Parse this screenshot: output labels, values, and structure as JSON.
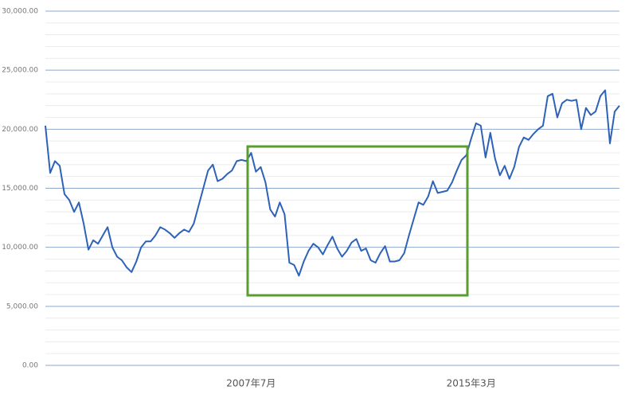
{
  "chart_data": {
    "type": "line",
    "categories": [
      null,
      null,
      null,
      null,
      null,
      null,
      null,
      null,
      null,
      null,
      null,
      null,
      null,
      null,
      null,
      null,
      null,
      null,
      null,
      null,
      null,
      null,
      null,
      null,
      null,
      null,
      null,
      null,
      null,
      null,
      null,
      null,
      null,
      null,
      null,
      null,
      null,
      null,
      null,
      null,
      null,
      null,
      null,
      "2007年7月",
      null,
      null,
      null,
      null,
      null,
      null,
      null,
      null,
      null,
      null,
      null,
      null,
      null,
      null,
      null,
      null,
      null,
      null,
      null,
      null,
      null,
      null,
      null,
      null,
      null,
      null,
      null,
      null,
      null,
      null,
      null,
      null,
      null,
      null,
      null,
      null,
      null,
      null,
      null,
      null,
      null,
      null,
      null,
      null,
      null,
      "2015年3月",
      null,
      null,
      null,
      null,
      null,
      null,
      null,
      null,
      null,
      null,
      null,
      null,
      null,
      null,
      null,
      null,
      null,
      null,
      null,
      null,
      null,
      null,
      null,
      null,
      null,
      null,
      null,
      null,
      null,
      null,
      null
    ],
    "series": [
      {
        "color": "#2e62b8",
        "values": [
          20300,
          16300,
          17300,
          16900,
          14500,
          14000,
          13000,
          13800,
          12000,
          9800,
          10600,
          10300,
          11000,
          11700,
          10000,
          9200,
          8900,
          8300,
          7900,
          8800,
          10000,
          10500,
          10500,
          11000,
          11700,
          11500,
          11200,
          10800,
          11200,
          11500,
          11300,
          12000,
          13500,
          15000,
          16500,
          17000,
          15600,
          15800,
          16200,
          16500,
          17300,
          17400,
          17300,
          18000,
          16400,
          16800,
          15500,
          13200,
          12600,
          13800,
          12800,
          8700,
          8500,
          7600,
          8800,
          9700,
          10300,
          10000,
          9400,
          10200,
          10900,
          9900,
          9200,
          9700,
          10400,
          10700,
          9700,
          9900,
          8900,
          8700,
          9500,
          10100,
          8800,
          8800,
          8900,
          9500,
          11000,
          12400,
          13800,
          13600,
          14300,
          15600,
          14600,
          14700,
          14800,
          15500,
          16500,
          17400,
          17800,
          19200,
          20500,
          20300,
          17600,
          19700,
          17500,
          16100,
          16900,
          15800,
          16800,
          18500,
          19300,
          19100,
          19600,
          20000,
          20300,
          22800,
          23000,
          21000,
          22200,
          22500,
          22400,
          22500,
          20000,
          21800,
          21200,
          21500,
          22800,
          23300,
          18800,
          21500,
          22000
        ]
      }
    ],
    "ylim": [
      0,
      30000
    ],
    "yticks": [
      {
        "value": 0,
        "label": "0.00"
      },
      {
        "value": 5000,
        "label": "5,000.00"
      },
      {
        "value": 10000,
        "label": "10,000.00"
      },
      {
        "value": 15000,
        "label": "15,000.00"
      },
      {
        "value": 20000,
        "label": "20,000.00"
      },
      {
        "value": 25000,
        "label": "25,000.00"
      },
      {
        "value": 30000,
        "label": "30,000.00"
      }
    ],
    "minor_yticks": [
      1000,
      2000,
      3000,
      4000,
      6000,
      7000,
      8000,
      9000,
      11000,
      12000,
      13000,
      14000,
      16000,
      17000,
      18000,
      19000,
      21000,
      22000,
      23000,
      24000,
      26000,
      27000,
      28000,
      29000
    ],
    "grid": true
  }
}
